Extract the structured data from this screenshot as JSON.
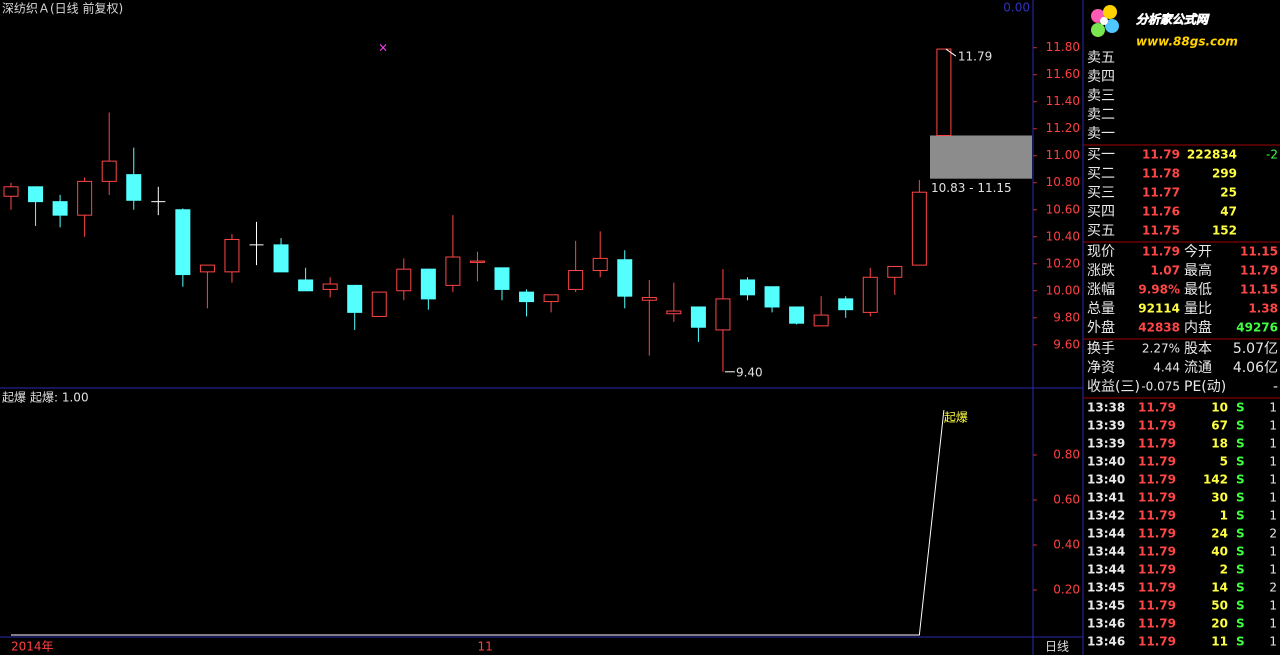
{
  "title": "深纺织Ａ(日线 前复权)",
  "corner_value": "0.00",
  "period": "日线",
  "kline": {
    "categories": [
      "2014年",
      null,
      null,
      null,
      null,
      null,
      null,
      null,
      null,
      null,
      null,
      null,
      null,
      null,
      null,
      null,
      null,
      null,
      null,
      "11",
      null,
      null,
      null,
      null,
      null,
      null,
      null,
      null,
      null,
      null,
      null,
      null,
      null,
      null,
      null,
      null,
      null,
      null,
      null
    ],
    "open": [
      10.7,
      10.77,
      10.66,
      10.56,
      10.81,
      10.86,
      10.66,
      10.6,
      10.14,
      10.14,
      10.34,
      10.34,
      10.08,
      10.01,
      10.04,
      9.81,
      10.0,
      10.16,
      10.04,
      10.21,
      10.17,
      9.99,
      9.92,
      10.01,
      10.15,
      10.23,
      9.93,
      9.83,
      9.88,
      9.71,
      10.08,
      10.03,
      9.88,
      9.74,
      9.94,
      9.84,
      10.1,
      10.19,
      11.15
    ],
    "high": [
      10.8,
      10.77,
      10.71,
      10.84,
      11.32,
      11.06,
      10.77,
      10.61,
      10.19,
      10.42,
      10.51,
      10.39,
      10.17,
      10.1,
      10.04,
      9.99,
      10.24,
      10.16,
      10.56,
      10.29,
      10.17,
      10.01,
      9.97,
      10.37,
      10.44,
      10.3,
      10.08,
      10.06,
      9.88,
      10.16,
      10.1,
      10.03,
      9.88,
      9.96,
      9.96,
      10.17,
      10.18,
      10.82,
      11.79
    ],
    "low": [
      10.6,
      10.48,
      10.47,
      10.4,
      10.71,
      10.6,
      10.56,
      10.03,
      9.87,
      10.06,
      10.19,
      10.14,
      10.0,
      9.95,
      9.71,
      9.81,
      9.93,
      9.86,
      9.99,
      10.07,
      9.93,
      9.81,
      9.84,
      9.99,
      10.1,
      9.87,
      9.52,
      9.77,
      9.62,
      9.4,
      9.93,
      9.84,
      9.75,
      9.74,
      9.8,
      9.81,
      9.97,
      10.19,
      11.15
    ],
    "close": [
      10.77,
      10.66,
      10.56,
      10.81,
      10.96,
      10.67,
      10.66,
      10.12,
      10.19,
      10.38,
      10.34,
      10.14,
      10.0,
      10.05,
      9.84,
      9.99,
      10.16,
      9.94,
      10.25,
      10.22,
      10.01,
      9.92,
      9.97,
      10.15,
      10.24,
      9.96,
      9.95,
      9.85,
      9.73,
      9.94,
      9.97,
      9.88,
      9.76,
      9.82,
      9.86,
      10.1,
      10.18,
      10.73,
      11.79
    ],
    "ylim": [
      9.28,
      12.02
    ],
    "yticks": [
      {
        "value": 11.8,
        "label": "11.80"
      },
      {
        "value": 11.6,
        "label": "11.60"
      },
      {
        "value": 11.4,
        "label": "11.40"
      },
      {
        "value": 11.2,
        "label": "11.20"
      },
      {
        "value": 11.0,
        "label": "11.00"
      },
      {
        "value": 10.8,
        "label": "10.80"
      },
      {
        "value": 10.6,
        "label": "10.60"
      },
      {
        "value": 10.4,
        "label": "10.40"
      },
      {
        "value": 10.2,
        "label": "10.20"
      },
      {
        "value": 10.0,
        "label": "10.00"
      },
      {
        "value": 9.8,
        "label": "9.80"
      },
      {
        "value": 9.6,
        "label": "9.60"
      }
    ],
    "max_label": "11.79",
    "min_label": "9.40",
    "range": {
      "low": 10.83,
      "high": 11.15,
      "label": "10.83 - 11.15"
    }
  },
  "indicator": {
    "name": "起爆",
    "legend": "起爆: 1.00",
    "line_label": "起爆",
    "values": [
      0,
      0,
      0,
      0,
      0,
      0,
      0,
      0,
      0,
      0,
      0,
      0,
      0,
      0,
      0,
      0,
      0,
      0,
      0,
      0,
      0,
      0,
      0,
      0,
      0,
      0,
      0,
      0,
      0,
      0,
      0,
      0,
      0,
      0,
      0,
      0,
      0,
      0,
      1
    ],
    "ylim": [
      0,
      1
    ],
    "yticks": [
      {
        "value": 0.8,
        "label": "0.80"
      },
      {
        "value": 0.6,
        "label": "0.60"
      },
      {
        "value": 0.4,
        "label": "0.40"
      },
      {
        "value": 0.2,
        "label": "0.20"
      }
    ]
  },
  "logo": {
    "name": "分析家公式网",
    "url": "www.88gs.com"
  },
  "sell": [
    "卖五",
    "卖四",
    "卖三",
    "卖二",
    "卖一"
  ],
  "buy": [
    [
      "买一",
      "11.79",
      "222834",
      "-2"
    ],
    [
      "买二",
      "11.78",
      "299",
      ""
    ],
    [
      "买三",
      "11.77",
      "25",
      ""
    ],
    [
      "买四",
      "11.76",
      "47",
      ""
    ],
    [
      "买五",
      "11.75",
      "152",
      ""
    ]
  ],
  "stats": [
    [
      "现价",
      "11.79",
      "今开",
      "11.15"
    ],
    [
      "涨跌",
      "1.07",
      "最高",
      "11.79"
    ],
    [
      "涨幅",
      "9.98%",
      "最低",
      "11.15"
    ],
    [
      "总量",
      "92114",
      "量比",
      "1.38"
    ],
    [
      "外盘",
      "42838",
      "内盘",
      "49276"
    ]
  ],
  "info": [
    [
      "换手",
      "2.27%",
      "股本",
      "5.07亿"
    ],
    [
      "净资",
      "4.44",
      "流通",
      "4.06亿"
    ],
    [
      "收益(三)",
      "-0.075",
      "PE(动)",
      "-"
    ]
  ],
  "ticks": [
    [
      "13:38",
      "11.79",
      "10",
      "S",
      "1"
    ],
    [
      "13:39",
      "11.79",
      "67",
      "S",
      "1"
    ],
    [
      "13:39",
      "11.79",
      "18",
      "S",
      "1"
    ],
    [
      "13:40",
      "11.79",
      "5",
      "S",
      "1"
    ],
    [
      "13:40",
      "11.79",
      "142",
      "S",
      "1"
    ],
    [
      "13:41",
      "11.79",
      "30",
      "S",
      "1"
    ],
    [
      "13:42",
      "11.79",
      "1",
      "S",
      "1"
    ],
    [
      "13:44",
      "11.79",
      "24",
      "S",
      "2"
    ],
    [
      "13:44",
      "11.79",
      "40",
      "S",
      "1"
    ],
    [
      "13:44",
      "11.79",
      "2",
      "S",
      "1"
    ],
    [
      "13:45",
      "11.79",
      "14",
      "S",
      "2"
    ],
    [
      "13:45",
      "11.79",
      "50",
      "S",
      "1"
    ],
    [
      "13:46",
      "11.79",
      "20",
      "S",
      "1"
    ],
    [
      "13:46",
      "11.79",
      "11",
      "S",
      "1"
    ]
  ]
}
